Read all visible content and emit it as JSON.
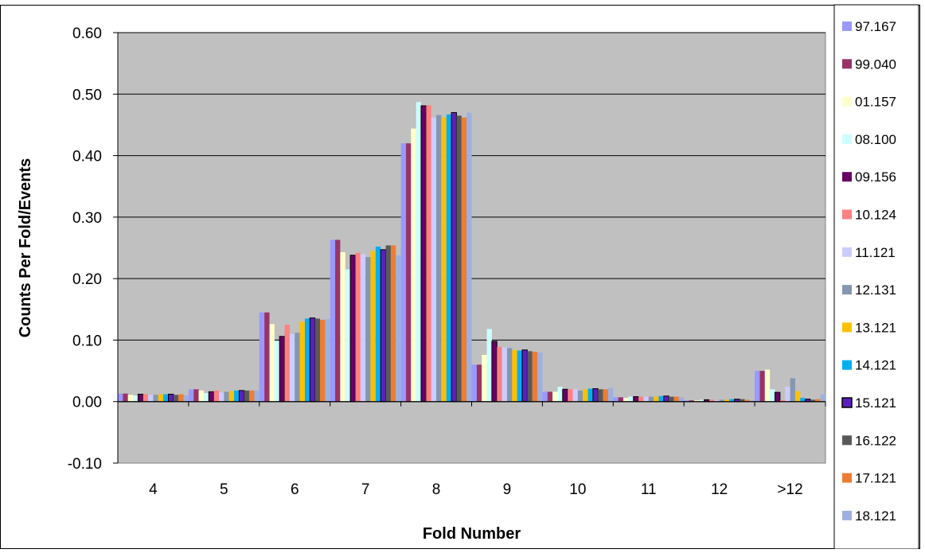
{
  "chart_data": {
    "type": "bar",
    "xlabel": "Fold Number",
    "ylabel": "Counts Per Fold/Events",
    "ylim": [
      -0.1,
      0.6
    ],
    "yticks": [
      "-0.10",
      "0.00",
      "0.10",
      "0.20",
      "0.30",
      "0.40",
      "0.50",
      "0.60"
    ],
    "ytick_values": [
      -0.1,
      0.0,
      0.1,
      0.2,
      0.3,
      0.4,
      0.5,
      0.6
    ],
    "grid": true,
    "legend_position": "right",
    "plot_background": "#c0c0c0",
    "categories": [
      "4",
      "5",
      "6",
      "7",
      "8",
      "9",
      "10",
      "11",
      "12",
      ">12"
    ],
    "series": [
      {
        "name": "97.167",
        "color": "#9999ff",
        "values": [
          0.013,
          0.02,
          0.145,
          0.263,
          0.42,
          0.06,
          0.016,
          0.007,
          0.002,
          0.05
        ]
      },
      {
        "name": "99.040",
        "color": "#993366",
        "values": [
          0.013,
          0.02,
          0.145,
          0.263,
          0.42,
          0.06,
          0.016,
          0.007,
          0.002,
          0.05
        ]
      },
      {
        "name": "01.157",
        "color": "#ffffcc",
        "values": [
          0.011,
          0.018,
          0.126,
          0.243,
          0.444,
          0.076,
          0.016,
          0.006,
          0.002,
          0.052
        ]
      },
      {
        "name": "08.100",
        "color": "#ccffff",
        "values": [
          0.01,
          0.014,
          0.099,
          0.215,
          0.487,
          0.118,
          0.024,
          0.008,
          0.003,
          0.02
        ]
      },
      {
        "name": "09.156",
        "color": "#660066",
        "values": [
          0.012,
          0.016,
          0.106,
          0.238,
          0.481,
          0.098,
          0.02,
          0.008,
          0.003,
          0.015
        ]
      },
      {
        "name": "10.124",
        "color": "#ff8080",
        "values": [
          0.012,
          0.018,
          0.125,
          0.242,
          0.482,
          0.089,
          0.02,
          0.008,
          0.003,
          0.002
        ]
      },
      {
        "name": "11.121",
        "color": "#ccccff",
        "values": [
          0.011,
          0.015,
          0.11,
          0.24,
          0.462,
          0.088,
          0.02,
          0.008,
          0.002,
          0.024
        ]
      },
      {
        "name": "12.131",
        "color": "#8497b0",
        "values": [
          0.011,
          0.016,
          0.112,
          0.235,
          0.466,
          0.087,
          0.018,
          0.008,
          0.003,
          0.038
        ]
      },
      {
        "name": "13.121",
        "color": "#ffc000",
        "values": [
          0.012,
          0.017,
          0.13,
          0.245,
          0.462,
          0.084,
          0.02,
          0.008,
          0.003,
          0.017
        ]
      },
      {
        "name": "14.121",
        "color": "#00b0f0",
        "values": [
          0.012,
          0.018,
          0.135,
          0.252,
          0.467,
          0.083,
          0.021,
          0.009,
          0.004,
          0.006
        ]
      },
      {
        "name": "15.121",
        "color": "#5b1fbf",
        "values": [
          0.012,
          0.018,
          0.136,
          0.247,
          0.47,
          0.084,
          0.021,
          0.009,
          0.004,
          0.004
        ]
      },
      {
        "name": "16.122",
        "color": "#595959",
        "values": [
          0.011,
          0.018,
          0.135,
          0.254,
          0.465,
          0.082,
          0.02,
          0.008,
          0.004,
          0.003
        ]
      },
      {
        "name": "17.121",
        "color": "#ed7d31",
        "values": [
          0.012,
          0.018,
          0.133,
          0.254,
          0.462,
          0.081,
          0.02,
          0.008,
          0.003,
          0.004
        ]
      },
      {
        "name": "18.121",
        "color": "#9db0e0",
        "values": [
          0.01,
          0.018,
          0.134,
          0.238,
          0.47,
          0.08,
          0.022,
          0.007,
          0.002,
          0.012
        ]
      }
    ]
  }
}
